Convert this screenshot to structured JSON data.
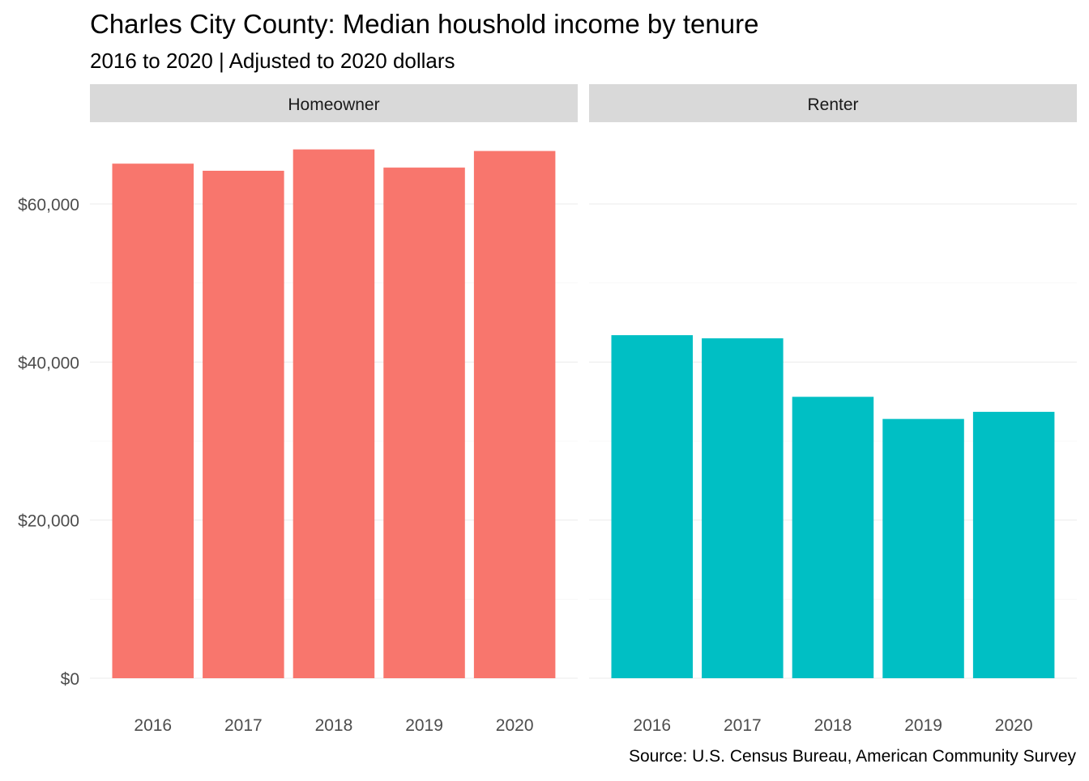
{
  "chart_data": {
    "type": "bar",
    "title": "Charles City County: Median houshold income by tenure",
    "subtitle": "2016 to 2020 | Adjusted to 2020 dollars",
    "caption": "Source: U.S. Census Bureau, American Community Survey",
    "xlabel": "",
    "ylabel": "",
    "ylim": [
      0,
      67000
    ],
    "y_ticks": [
      0,
      20000,
      40000,
      60000
    ],
    "y_tick_labels": [
      "$0",
      "$20,000",
      "$40,000",
      "$60,000"
    ],
    "grid": true,
    "legend": "none",
    "categories": [
      "2016",
      "2017",
      "2018",
      "2019",
      "2020"
    ],
    "facets": [
      {
        "label": "Homeowner",
        "color": "#F8766D",
        "values": [
          65100,
          64200,
          66900,
          64600,
          66700
        ]
      },
      {
        "label": "Renter",
        "color": "#00BFC4",
        "values": [
          43400,
          43000,
          35600,
          32800,
          33700
        ]
      }
    ]
  }
}
